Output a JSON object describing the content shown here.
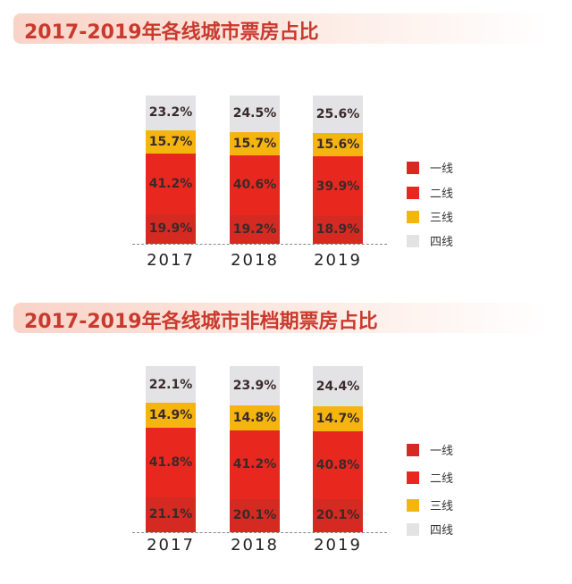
{
  "chart_data": [
    {
      "type": "bar",
      "stacked": true,
      "title": "2017-2019年各线城市票房占比",
      "categories": [
        "2017",
        "2018",
        "2019"
      ],
      "series": [
        {
          "name": "一线",
          "color": "#d42a22",
          "values": [
            19.9,
            19.2,
            18.9
          ],
          "labels": [
            "19.9%",
            "19.2%",
            "18.9%"
          ]
        },
        {
          "name": "二线",
          "color": "#e8281e",
          "values": [
            41.2,
            40.6,
            39.9
          ],
          "labels": [
            "41.2%",
            "40.6%",
            "39.9%"
          ]
        },
        {
          "name": "三线",
          "color": "#f5b50f",
          "values": [
            15.7,
            15.7,
            15.6
          ],
          "labels": [
            "15.7%",
            "15.7%",
            "15.6%"
          ]
        },
        {
          "name": "四线",
          "color": "#e3e3e5",
          "values": [
            23.2,
            24.5,
            25.6
          ],
          "labels": [
            "23.2%",
            "24.5%",
            "25.6%"
          ]
        }
      ],
      "legend": "right",
      "grid": false
    },
    {
      "type": "bar",
      "stacked": true,
      "title": "2017-2019年各线城市非档期票房占比",
      "categories": [
        "2017",
        "2018",
        "2019"
      ],
      "series": [
        {
          "name": "一线",
          "color": "#d42a22",
          "values": [
            21.1,
            20.1,
            20.1
          ],
          "labels": [
            "21.1%",
            "20.1%",
            "20.1%"
          ]
        },
        {
          "name": "二线",
          "color": "#e8281e",
          "values": [
            41.8,
            41.2,
            40.8
          ],
          "labels": [
            "41.8%",
            "41.2%",
            "40.8%"
          ]
        },
        {
          "name": "三线",
          "color": "#f5b50f",
          "values": [
            14.9,
            14.8,
            14.7
          ],
          "labels": [
            "14.9%",
            "14.8%",
            "14.7%"
          ]
        },
        {
          "name": "四线",
          "color": "#e3e3e5",
          "values": [
            22.1,
            23.9,
            24.4
          ],
          "labels": [
            "22.1%",
            "23.9%",
            "24.4%"
          ]
        }
      ],
      "legend": "right",
      "grid": false
    }
  ]
}
